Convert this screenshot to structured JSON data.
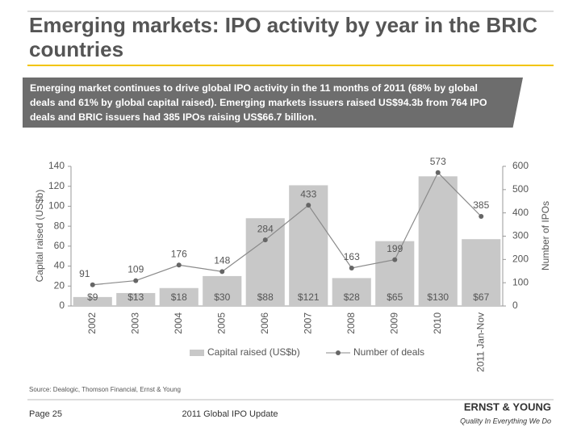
{
  "slide": {
    "title": "Emerging markets: IPO activity by year in the BRIC countries",
    "banner": "Emerging market continues to drive global IPO activity in the 11 months of 2011  (68% by global deals and 61% by global capital raised). Emerging markets issuers raised US$94.3b from 764 IPO deals and BRIC issuers had 385 IPOs raising US$66.7 billion.",
    "source": "Source: Dealogic, Thomson Financial, Ernst & Young",
    "page": "Page 25",
    "footer": "2011 Global IPO Update",
    "logo": "ERNST & YOUNG",
    "tagline": "Quality In Everything We Do"
  },
  "chart_data": {
    "type": "bar",
    "y_label": "Capital raised (US$b)",
    "y2_label": "Number of IPOs",
    "categories": [
      "2002",
      "2003",
      "2004",
      "2005",
      "2006",
      "2007",
      "2008",
      "2009",
      "2010",
      "2011 Jan-Nov"
    ],
    "series": [
      {
        "name": "Capital raised (US$b)",
        "type": "bar",
        "color": "#c8c8c8",
        "values": [
          9,
          13,
          18,
          30,
          88,
          121,
          28,
          65,
          130,
          67
        ],
        "value_labels": [
          "$9",
          "$13",
          "$18",
          "$30",
          "$88",
          "$121",
          "$28",
          "$65",
          "$130",
          "$67"
        ]
      },
      {
        "name": "Number of deals",
        "type": "line",
        "axis": "y2",
        "color": "#8a8a8a",
        "values": [
          91,
          109,
          176,
          148,
          284,
          433,
          163,
          199,
          573,
          385
        ]
      }
    ],
    "ylim": [
      0,
      140
    ],
    "yticks": [
      0,
      20,
      40,
      60,
      80,
      100,
      120,
      140
    ],
    "y2lim": [
      0,
      600
    ],
    "y2ticks": [
      0,
      100,
      200,
      300,
      400,
      500,
      600
    ],
    "legend": "bottom"
  }
}
